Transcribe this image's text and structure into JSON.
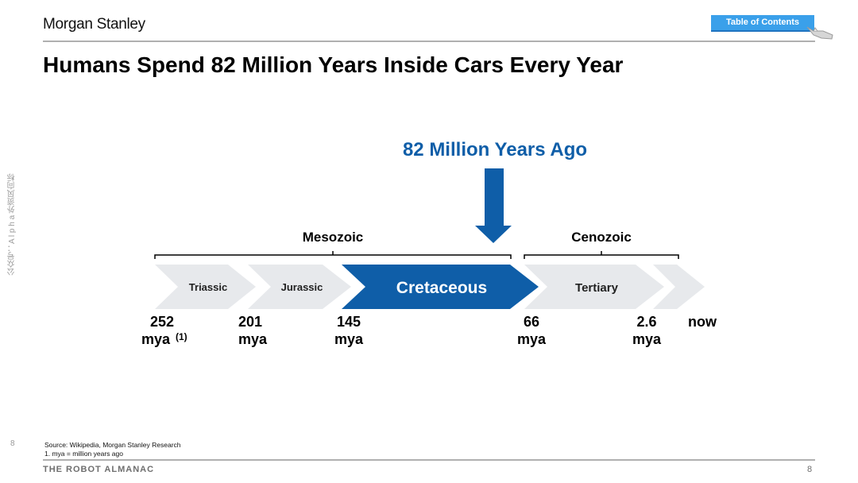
{
  "header": {
    "logo": "Morgan Stanley",
    "toc_button": "Table of Contents",
    "title": "Humans Spend 82 Million Years Inside Cars Every Year"
  },
  "diagram": {
    "callout": "82 Million Years Ago",
    "eras": [
      {
        "label": "Mesozoic"
      },
      {
        "label": "Cenozoic"
      }
    ],
    "periods": [
      {
        "label": "Triassic"
      },
      {
        "label": "Jurassic"
      },
      {
        "label": "Cretaceous",
        "highlight": true
      },
      {
        "label": "Tertiary"
      }
    ],
    "ticks": [
      {
        "value": "252",
        "unit": "mya",
        "note": "(1)"
      },
      {
        "value": "201",
        "unit": "mya"
      },
      {
        "value": "145",
        "unit": "mya"
      },
      {
        "value": "66",
        "unit": "mya"
      },
      {
        "value": "2.6",
        "unit": "mya"
      },
      {
        "value": "now",
        "unit": ""
      }
    ],
    "colors": {
      "highlight": "#0f5ea8",
      "chevron": "#e7e9ec",
      "text": "#000000"
    }
  },
  "footnotes": {
    "source": "Source: Wikipedia, Morgan Stanley Research",
    "note1": "1. mya = million years ago"
  },
  "footer": {
    "publication": "THE ROBOT ALMANAC",
    "page": "8",
    "side_page": "8"
  },
  "watermark": "公众号：A l p h a 外资风向标"
}
